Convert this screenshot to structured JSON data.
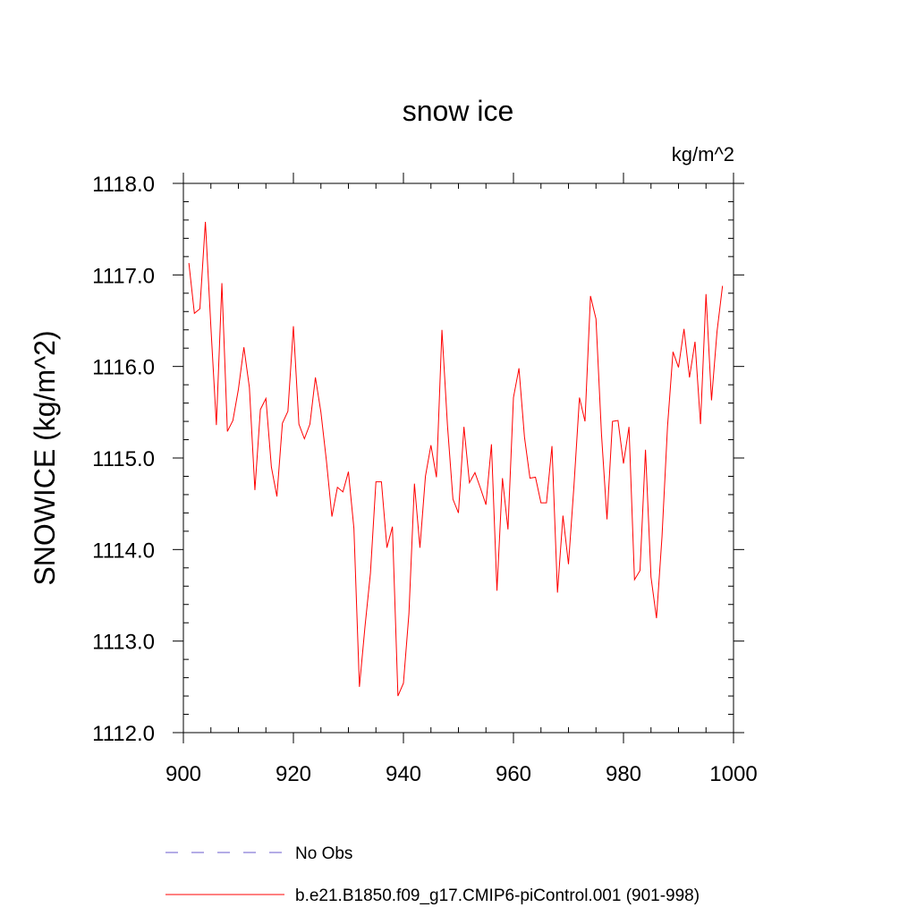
{
  "chart_data": {
    "type": "line",
    "title": "snow ice",
    "units": "kg/m^2",
    "ylabel": "SNOWICE  (kg/m^2)",
    "xlabel": "",
    "xlim": [
      900,
      1000
    ],
    "ylim": [
      1112.0,
      1118.0
    ],
    "x_ticks": [
      900,
      920,
      940,
      960,
      980,
      1000
    ],
    "y_ticks": [
      1112.0,
      1113.0,
      1114.0,
      1115.0,
      1116.0,
      1117.0,
      1118.0
    ],
    "x_tick_labels": [
      "900",
      "920",
      "940",
      "960",
      "980",
      "1000"
    ],
    "y_tick_labels": [
      "1112.0",
      "1113.0",
      "1114.0",
      "1115.0",
      "1116.0",
      "1117.0",
      "1118.0"
    ],
    "grid": false,
    "legend": [
      {
        "label": "No Obs",
        "color": "#6a5acd",
        "dash": "dashed"
      },
      {
        "label": "b.e21.B1850.f09_g17.CMIP6-piControl.001 (901-998)",
        "color": "#ff0000",
        "dash": "solid"
      }
    ],
    "series": [
      {
        "name": "b.e21.B1850.f09_g17.CMIP6-piControl.001 (901-998)",
        "color": "#ff0000",
        "x": [
          901,
          902,
          903,
          904,
          905,
          906,
          907,
          908,
          909,
          910,
          911,
          912,
          913,
          914,
          915,
          916,
          917,
          918,
          919,
          920,
          921,
          922,
          923,
          924,
          925,
          926,
          927,
          928,
          929,
          930,
          931,
          932,
          933,
          934,
          935,
          936,
          937,
          938,
          939,
          940,
          941,
          942,
          943,
          944,
          945,
          946,
          947,
          948,
          949,
          950,
          951,
          952,
          953,
          954,
          955,
          956,
          957,
          958,
          959,
          960,
          961,
          962,
          963,
          964,
          965,
          966,
          967,
          968,
          969,
          970,
          971,
          972,
          973,
          974,
          975,
          976,
          977,
          978,
          979,
          980,
          981,
          982,
          983,
          984,
          985,
          986,
          987,
          988,
          989,
          990,
          991,
          992,
          993,
          994,
          995,
          996,
          997,
          998
        ],
        "values": [
          1117.13,
          1116.58,
          1116.63,
          1117.58,
          1116.43,
          1115.36,
          1116.91,
          1115.29,
          1115.41,
          1115.75,
          1116.21,
          1115.77,
          1114.65,
          1115.53,
          1115.65,
          1114.9,
          1114.58,
          1115.38,
          1115.51,
          1116.44,
          1115.37,
          1115.21,
          1115.37,
          1115.88,
          1115.5,
          1114.97,
          1114.36,
          1114.68,
          1114.63,
          1114.85,
          1114.23,
          1112.5,
          1113.15,
          1113.74,
          1114.74,
          1114.74,
          1114.02,
          1114.25,
          1112.4,
          1112.54,
          1113.3,
          1114.72,
          1114.02,
          1114.8,
          1115.14,
          1114.79,
          1116.4,
          1115.36,
          1114.55,
          1114.4,
          1115.34,
          1114.73,
          1114.84,
          1114.67,
          1114.49,
          1115.15,
          1113.55,
          1114.78,
          1114.22,
          1115.66,
          1115.98,
          1115.23,
          1114.78,
          1114.79,
          1114.51,
          1114.51,
          1115.13,
          1113.53,
          1114.37,
          1113.84,
          1114.7,
          1115.66,
          1115.4,
          1116.77,
          1116.52,
          1115.26,
          1114.33,
          1115.4,
          1115.41,
          1114.94,
          1115.34,
          1113.67,
          1113.77,
          1115.09,
          1113.7,
          1113.25,
          1114.14,
          1115.34,
          1116.16,
          1115.99,
          1116.41,
          1115.88,
          1116.27,
          1115.37,
          1116.79,
          1115.63,
          1116.38,
          1116.88
        ]
      }
    ]
  }
}
